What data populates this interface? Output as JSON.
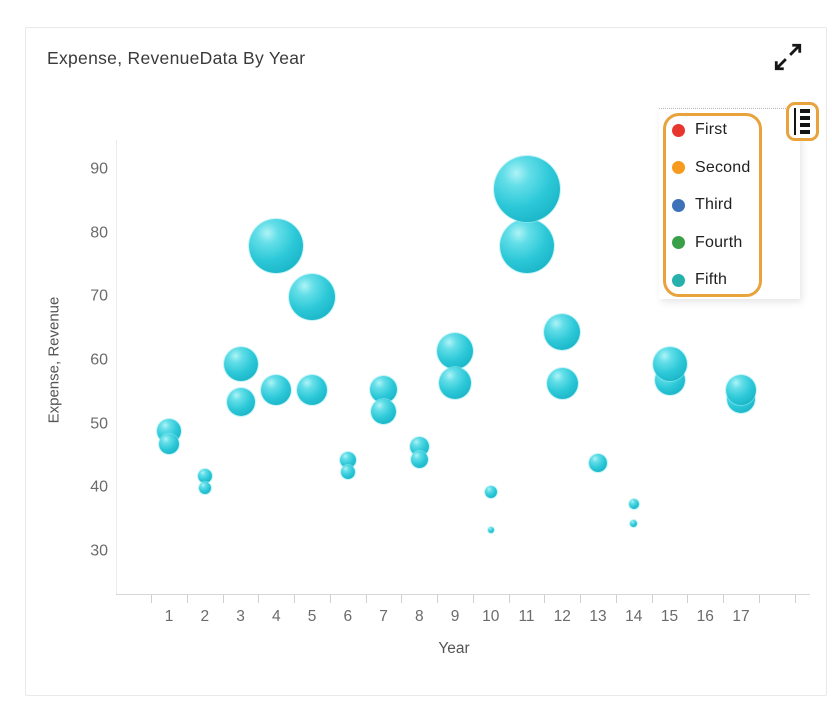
{
  "card": {
    "title": "Expense, RevenueData By Year"
  },
  "toolbar": {
    "expand_icon": "expand-diagonal-arrows",
    "menu_icon": "chart-options-menu"
  },
  "annotations": {
    "highlight_color": "#E8A33D",
    "highlighted_elements": [
      "legend",
      "menu-button"
    ]
  },
  "chart_data": {
    "type": "bubble",
    "title": "Expense, RevenueData By Year",
    "xlabel": "Year",
    "ylabel": "Expense, Revenue",
    "x_ticks": [
      1,
      2,
      3,
      4,
      5,
      6,
      7,
      8,
      9,
      10,
      11,
      12,
      13,
      14,
      15,
      16,
      17
    ],
    "y_ticks": [
      30,
      40,
      50,
      60,
      70,
      80,
      90
    ],
    "xlim": [
      0.5,
      17.5
    ],
    "ylim": [
      25,
      95
    ],
    "grid": false,
    "legend_position": "top-right",
    "legend": [
      {
        "label": "First",
        "color": "#e8352e"
      },
      {
        "label": "Second",
        "color": "#f79a1e"
      },
      {
        "label": "Third",
        "color": "#3d72b8"
      },
      {
        "label": "Fourth",
        "color": "#3aa047"
      },
      {
        "label": "Fifth",
        "color": "#27b1ac"
      }
    ],
    "bubble_color": "#2bc7d7",
    "points": [
      {
        "x": 1,
        "y": 49,
        "r": 12
      },
      {
        "x": 1,
        "y": 47,
        "r": 10
      },
      {
        "x": 2,
        "y": 42,
        "r": 7
      },
      {
        "x": 2,
        "y": 40,
        "r": 6
      },
      {
        "x": 3,
        "y": 59.5,
        "r": 17
      },
      {
        "x": 3,
        "y": 53.5,
        "r": 14
      },
      {
        "x": 4,
        "y": 78,
        "r": 27
      },
      {
        "x": 4,
        "y": 55.5,
        "r": 15
      },
      {
        "x": 5,
        "y": 70,
        "r": 23
      },
      {
        "x": 5,
        "y": 55.5,
        "r": 15
      },
      {
        "x": 6,
        "y": 44.5,
        "r": 8
      },
      {
        "x": 6,
        "y": 42.5,
        "r": 7
      },
      {
        "x": 7,
        "y": 55.5,
        "r": 13.5
      },
      {
        "x": 7,
        "y": 52,
        "r": 12.5
      },
      {
        "x": 8,
        "y": 46.5,
        "r": 9.5
      },
      {
        "x": 8,
        "y": 44.5,
        "r": 8.5
      },
      {
        "x": 9,
        "y": 61.5,
        "r": 18
      },
      {
        "x": 9,
        "y": 56.5,
        "r": 16
      },
      {
        "x": 10,
        "y": 39.5,
        "r": 6
      },
      {
        "x": 10,
        "y": 33.5,
        "r": 3
      },
      {
        "x": 11,
        "y": 78,
        "r": 27
      },
      {
        "x": 11,
        "y": 87,
        "r": 33
      },
      {
        "x": 12,
        "y": 64.5,
        "r": 18
      },
      {
        "x": 12,
        "y": 56.5,
        "r": 15.5
      },
      {
        "x": 13,
        "y": 44,
        "r": 9
      },
      {
        "x": 14,
        "y": 37.5,
        "r": 5
      },
      {
        "x": 14,
        "y": 34.5,
        "r": 3.5
      },
      {
        "x": 15,
        "y": 57,
        "r": 15
      },
      {
        "x": 15,
        "y": 59.5,
        "r": 17
      },
      {
        "x": 17,
        "y": 54,
        "r": 14
      },
      {
        "x": 17,
        "y": 55.5,
        "r": 15
      }
    ]
  }
}
